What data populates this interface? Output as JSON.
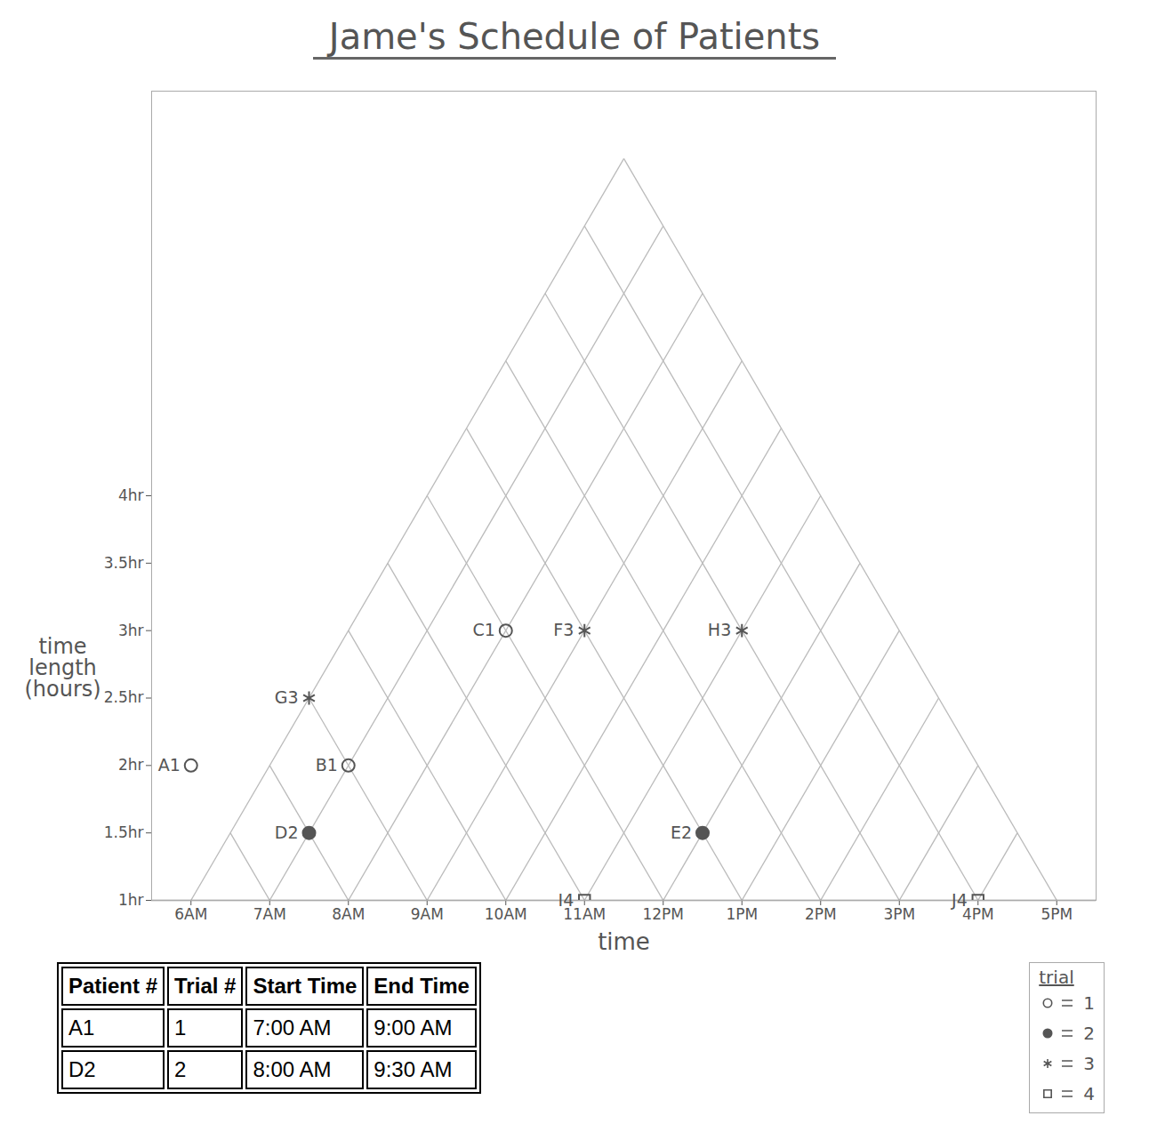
{
  "chart_data": {
    "type": "scatter",
    "title": "Jame's Schedule of Patients",
    "x_label": "time",
    "y_label": "time length (hours)",
    "xlim": [
      5.5,
      17.5
    ],
    "xticks": [
      {
        "value": 6,
        "label": "6AM"
      },
      {
        "value": 7,
        "label": "7AM"
      },
      {
        "value": 8,
        "label": "8AM"
      },
      {
        "value": 9,
        "label": "9AM"
      },
      {
        "value": 10,
        "label": "10AM"
      },
      {
        "value": 11,
        "label": "11AM"
      },
      {
        "value": 12,
        "label": "12PM"
      },
      {
        "value": 13,
        "label": "1PM"
      },
      {
        "value": 14,
        "label": "2PM"
      },
      {
        "value": 15,
        "label": "3PM"
      },
      {
        "value": 16,
        "label": "4PM"
      },
      {
        "value": 17,
        "label": "5PM"
      }
    ],
    "ylim": [
      1,
      7
    ],
    "yticks": [
      {
        "value": 1,
        "label": "1hr"
      },
      {
        "value": 1.5,
        "label": "1.5hr"
      },
      {
        "value": 2,
        "label": "2hr"
      },
      {
        "value": 2.5,
        "label": "2.5hr"
      },
      {
        "value": 3,
        "label": "3hr"
      },
      {
        "value": 3.5,
        "label": "3.5hr"
      },
      {
        "value": 4,
        "label": "4hr"
      }
    ],
    "grid": true,
    "legend": "bottom-right",
    "legend_title": "trial",
    "series": [
      {
        "name": "1",
        "marker": "circle",
        "color": "#555555",
        "x": [
          6.0,
          8.0,
          10.0
        ],
        "values": [
          2.0,
          2.0,
          3.0
        ],
        "labels": [
          "A1",
          "B1",
          "C1"
        ]
      },
      {
        "name": "2",
        "marker": "dot",
        "color": "#555555",
        "x": [
          7.5,
          12.5
        ],
        "values": [
          1.5,
          1.5
        ],
        "labels": [
          "D2",
          "E2"
        ]
      },
      {
        "name": "3",
        "marker": "asterisk",
        "color": "#555555",
        "x": [
          11.0,
          7.5,
          13.0
        ],
        "values": [
          3.0,
          2.5,
          3.0
        ],
        "labels": [
          "F3",
          "G3",
          "H3"
        ]
      },
      {
        "name": "4",
        "marker": "square",
        "color": "#555555",
        "x": [
          11.0,
          16.0
        ],
        "values": [
          1.0,
          1.0
        ],
        "labels": [
          "I4",
          "J4"
        ]
      }
    ]
  },
  "table": {
    "columns": [
      "Patient #",
      "Trial #",
      "Start Time",
      "End Time"
    ],
    "rows": [
      [
        "A1",
        "1",
        "7:00 AM",
        "9:00 AM"
      ],
      [
        "D2",
        "2",
        "8:00 AM",
        "9:30 AM"
      ]
    ]
  }
}
